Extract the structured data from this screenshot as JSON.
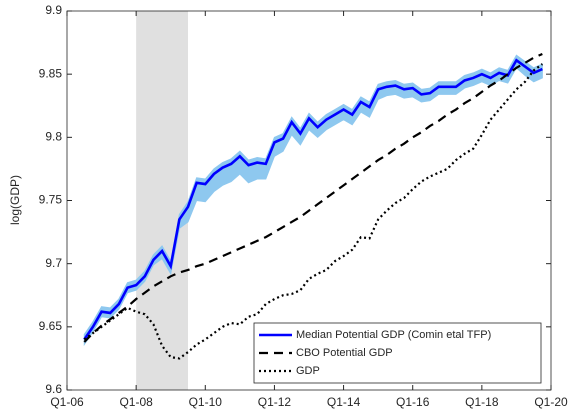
{
  "chart_data": {
    "type": "line",
    "y_label": "log(GDP)",
    "x": [
      2006.5,
      2006.75,
      2007,
      2007.25,
      2007.5,
      2007.75,
      2008,
      2008.25,
      2008.5,
      2008.75,
      2009,
      2009.25,
      2009.5,
      2009.75,
      2010,
      2010.25,
      2010.5,
      2010.75,
      2011,
      2011.25,
      2011.5,
      2011.75,
      2012,
      2012.25,
      2012.5,
      2012.75,
      2013,
      2013.25,
      2013.5,
      2013.75,
      2014,
      2014.25,
      2014.5,
      2014.75,
      2015,
      2015.25,
      2015.5,
      2015.75,
      2016,
      2016.25,
      2016.5,
      2016.75,
      2017,
      2017.25,
      2017.5,
      2017.75,
      2018,
      2018.25,
      2018.5,
      2018.75,
      2019,
      2019.25,
      2019.5,
      2019.75
    ],
    "xlim": [
      2006,
      2020
    ],
    "xticks": [
      {
        "value": 2006,
        "label": "Q1-06"
      },
      {
        "value": 2008,
        "label": "Q1-08"
      },
      {
        "value": 2010,
        "label": "Q1-10"
      },
      {
        "value": 2012,
        "label": "Q1-12"
      },
      {
        "value": 2014,
        "label": "Q1-14"
      },
      {
        "value": 2016,
        "label": "Q1-16"
      },
      {
        "value": 2018,
        "label": "Q1-18"
      },
      {
        "value": 2020,
        "label": "Q1-20"
      }
    ],
    "ylim": [
      9.6,
      9.9
    ],
    "yticks": [
      9.6,
      9.65,
      9.7,
      9.75,
      9.8,
      9.85,
      9.9
    ],
    "legend": "lower right",
    "shade": {
      "color": "#e0e0e0",
      "range": [
        2008,
        2009.5
      ]
    },
    "band": {
      "color": "#8ec8ef",
      "upper": [
        9.644,
        9.654,
        9.666,
        9.665,
        9.672,
        9.685,
        9.687,
        9.694,
        9.707,
        9.714,
        9.702,
        9.739,
        9.749,
        9.768,
        9.767,
        9.775,
        9.78,
        9.783,
        9.789,
        9.782,
        9.784,
        9.783,
        9.8,
        9.803,
        9.816,
        9.807,
        9.819,
        9.812,
        9.818,
        9.822,
        9.826,
        9.822,
        9.832,
        9.828,
        9.842,
        9.844,
        9.845,
        9.842,
        9.843,
        9.838,
        9.839,
        9.844,
        9.844,
        9.844,
        9.849,
        9.851,
        9.854,
        9.851,
        9.855,
        9.853,
        9.865,
        9.86,
        9.855,
        9.858
      ],
      "lower": [
        9.636,
        9.646,
        9.658,
        9.657,
        9.664,
        9.677,
        9.679,
        9.686,
        9.699,
        9.704,
        9.692,
        9.728,
        9.733,
        9.75,
        9.749,
        9.757,
        9.762,
        9.765,
        9.771,
        9.764,
        9.767,
        9.767,
        9.785,
        9.789,
        9.802,
        9.794,
        9.806,
        9.8,
        9.806,
        9.81,
        9.814,
        9.81,
        9.82,
        9.816,
        9.83,
        9.833,
        9.834,
        9.831,
        9.832,
        9.828,
        9.829,
        9.834,
        9.834,
        9.834,
        9.839,
        9.841,
        9.844,
        9.841,
        9.845,
        9.843,
        9.855,
        9.849,
        9.844,
        9.847
      ]
    },
    "series": [
      {
        "name": "Median Potential GDP (Comin etal TFP)",
        "color": "#0000ff",
        "dash": "solid",
        "values": [
          9.64,
          9.65,
          9.662,
          9.661,
          9.668,
          9.681,
          9.683,
          9.69,
          9.703,
          9.71,
          9.698,
          9.735,
          9.745,
          9.764,
          9.763,
          9.771,
          9.776,
          9.779,
          9.785,
          9.778,
          9.78,
          9.779,
          9.796,
          9.799,
          9.812,
          9.803,
          9.815,
          9.808,
          9.814,
          9.818,
          9.822,
          9.818,
          9.828,
          9.824,
          9.838,
          9.84,
          9.841,
          9.838,
          9.839,
          9.834,
          9.835,
          9.84,
          9.84,
          9.84,
          9.845,
          9.847,
          9.85,
          9.847,
          9.851,
          9.849,
          9.861,
          9.856,
          9.851,
          9.854
        ]
      },
      {
        "name": "CBO Potential GDP",
        "color": "#000000",
        "dash": "dashed",
        "values": [
          9.638,
          9.645,
          9.651,
          9.656,
          9.661,
          9.666,
          9.672,
          9.677,
          9.682,
          9.686,
          9.69,
          9.693,
          9.695,
          9.698,
          9.7,
          9.703,
          9.706,
          9.709,
          9.712,
          9.715,
          9.718,
          9.721,
          9.725,
          9.729,
          9.733,
          9.737,
          9.742,
          9.747,
          9.752,
          9.757,
          9.762,
          9.767,
          9.772,
          9.777,
          9.782,
          9.786,
          9.791,
          9.795,
          9.8,
          9.804,
          9.809,
          9.813,
          9.818,
          9.822,
          9.827,
          9.831,
          9.836,
          9.841,
          9.845,
          9.85,
          9.855,
          9.859,
          9.863,
          9.866
        ]
      },
      {
        "name": "GDP",
        "color": "#000000",
        "dash": "dotted",
        "values": [
          9.64,
          9.645,
          9.65,
          9.655,
          9.66,
          9.665,
          9.662,
          9.66,
          9.652,
          9.635,
          9.626,
          9.625,
          9.63,
          9.636,
          9.64,
          9.645,
          9.65,
          9.653,
          9.652,
          9.658,
          9.66,
          9.668,
          9.672,
          9.675,
          9.676,
          9.679,
          9.688,
          9.692,
          9.695,
          9.702,
          9.706,
          9.711,
          9.721,
          9.72,
          9.735,
          9.742,
          9.748,
          9.752,
          9.759,
          9.765,
          9.769,
          9.772,
          9.775,
          9.782,
          9.787,
          9.791,
          9.802,
          9.814,
          9.822,
          9.83,
          9.838,
          9.844,
          9.853,
          9.858
        ]
      }
    ]
  }
}
